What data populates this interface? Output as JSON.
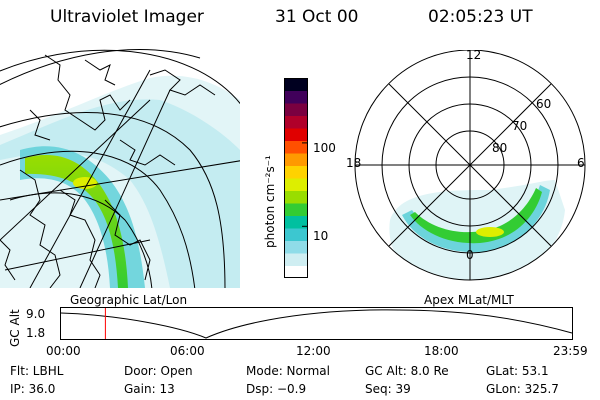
{
  "header": {
    "title": "Ultraviolet Imager",
    "date": "31 Oct 00",
    "time": "02:05:23 UT"
  },
  "geo_panel": {
    "caption": "Geographic Lat/Lon"
  },
  "colorbar": {
    "unit_label": "photon cm⁻²s⁻¹",
    "ticks": [
      {
        "value": 100,
        "label": "100"
      },
      {
        "value": 10,
        "label": "10"
      }
    ],
    "colors": [
      "#ffffff",
      "#cfeef2",
      "#8fdce8",
      "#3cc7d0",
      "#00c0a0",
      "#33cc33",
      "#99dd00",
      "#ddee00",
      "#ffd200",
      "#ff9900",
      "#ff5000",
      "#e00000",
      "#b0002a",
      "#7a0040",
      "#40005a",
      "#000020"
    ]
  },
  "polar_panel": {
    "caption": "Apex MLat/MLT",
    "mlt_labels": [
      "12",
      "18",
      "6",
      "0"
    ],
    "lat_labels": [
      "60",
      "70",
      "80"
    ]
  },
  "timeline": {
    "axis_label": "GC Alt",
    "y_ticks": [
      "9.0",
      "1.8"
    ],
    "x_ticks": [
      "00:00",
      "06:00",
      "12:00",
      "18:00",
      "23:59"
    ],
    "marker_time": "02:05",
    "marker_color": "#ff0000"
  },
  "info": {
    "filter": "Flt: LBHL",
    "ip": "IP: 36.0",
    "door": "Door: Open",
    "gain": "Gain: 13",
    "mode": "Mode: Normal",
    "dsp": "Dsp:   −0.9",
    "gc_alt": "GC Alt: 8.0 Re",
    "seq": "Seq: 39",
    "glat": "GLat:  53.1",
    "glon": "GLon: 325.7"
  }
}
